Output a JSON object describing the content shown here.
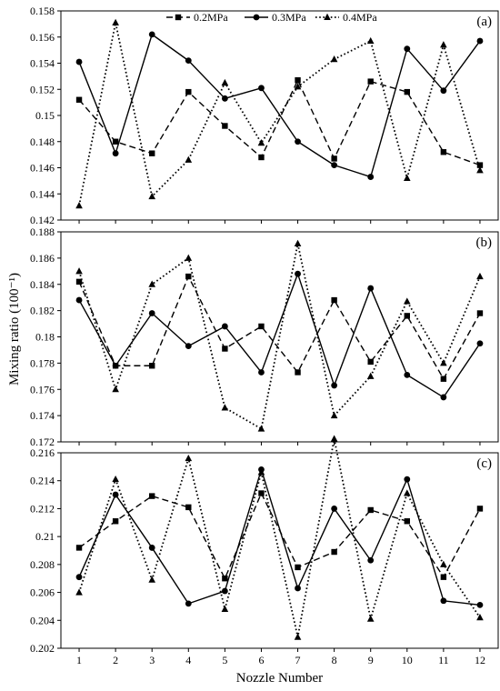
{
  "figure": {
    "ylabel": "Mixing ratio (100⁻¹)",
    "xlabel": "Nozzle Number",
    "legend": [
      "0.2MPa",
      "0.3MPa",
      "0.4MPa"
    ],
    "legend_position": "top-center"
  },
  "chart_data": [
    {
      "type": "line",
      "panel_label": "(a)",
      "x": [
        1,
        2,
        3,
        4,
        5,
        6,
        7,
        8,
        9,
        10,
        11,
        12
      ],
      "ylim": [
        0.142,
        0.158
      ],
      "yticks": [
        0.142,
        0.144,
        0.146,
        0.148,
        0.15,
        0.152,
        0.154,
        0.156,
        0.158
      ],
      "ytick_labels": [
        "0.142",
        "0.144",
        "0.146",
        "0.148",
        "0.15",
        "0.152",
        "0.154",
        "0.156",
        "0.158"
      ],
      "series": [
        {
          "name": "0.2MPa",
          "style": "dashed",
          "marker": "square",
          "values": [
            0.1512,
            0.148,
            0.1471,
            0.1518,
            0.1492,
            0.1468,
            0.1527,
            0.1467,
            0.1526,
            0.1518,
            0.1472,
            0.1462
          ]
        },
        {
          "name": "0.3MPa",
          "style": "solid",
          "marker": "circle",
          "values": [
            0.1541,
            0.1471,
            0.1562,
            0.1542,
            0.1513,
            0.1521,
            0.148,
            0.1462,
            0.1453,
            0.1551,
            0.1519,
            0.1557
          ]
        },
        {
          "name": "0.4MPa",
          "style": "dotted",
          "marker": "triangle",
          "values": [
            0.1431,
            0.1571,
            0.1438,
            0.1466,
            0.1525,
            0.1479,
            0.1522,
            0.1543,
            0.1557,
            0.1452,
            0.1554,
            0.1458
          ]
        }
      ]
    },
    {
      "type": "line",
      "panel_label": "(b)",
      "x": [
        1,
        2,
        3,
        4,
        5,
        6,
        7,
        8,
        9,
        10,
        11,
        12
      ],
      "ylim": [
        0.172,
        0.188
      ],
      "yticks": [
        0.172,
        0.174,
        0.176,
        0.178,
        0.18,
        0.182,
        0.184,
        0.186,
        0.188
      ],
      "ytick_labels": [
        "0.172",
        "0.174",
        "0.176",
        "0.178",
        "0.18",
        "0.182",
        "0.184",
        "0.186",
        "0.188"
      ],
      "series": [
        {
          "name": "0.2MPa",
          "style": "dashed",
          "marker": "square",
          "values": [
            0.1842,
            0.1778,
            0.1778,
            0.1846,
            0.1791,
            0.1808,
            0.1773,
            0.1828,
            0.1781,
            0.1816,
            0.1768,
            0.1818
          ]
        },
        {
          "name": "0.3MPa",
          "style": "solid",
          "marker": "circle",
          "values": [
            0.1828,
            0.1778,
            0.1818,
            0.1793,
            0.1808,
            0.1773,
            0.1848,
            0.1763,
            0.1837,
            0.1771,
            0.1754,
            0.1795
          ]
        },
        {
          "name": "0.4MPa",
          "style": "dotted",
          "marker": "triangle",
          "values": [
            0.185,
            0.176,
            0.184,
            0.186,
            0.1746,
            0.173,
            0.1871,
            0.174,
            0.177,
            0.1827,
            0.178,
            0.1846
          ]
        }
      ]
    },
    {
      "type": "line",
      "panel_label": "(c)",
      "x": [
        1,
        2,
        3,
        4,
        5,
        6,
        7,
        8,
        9,
        10,
        11,
        12
      ],
      "ylim": [
        0.202,
        0.216
      ],
      "yticks": [
        0.202,
        0.204,
        0.206,
        0.208,
        0.21,
        0.212,
        0.214,
        0.216
      ],
      "ytick_labels": [
        "0.202",
        "0.204",
        "0.206",
        "0.208",
        "0.21",
        "0.212",
        "0.214",
        "0.216"
      ],
      "series": [
        {
          "name": "0.2MPa",
          "style": "dashed",
          "marker": "square",
          "values": [
            0.2092,
            0.2111,
            0.2129,
            0.2121,
            0.207,
            0.2131,
            0.2078,
            0.2089,
            0.2119,
            0.2111,
            0.2071,
            0.212
          ]
        },
        {
          "name": "0.3MPa",
          "style": "solid",
          "marker": "circle",
          "values": [
            0.2071,
            0.213,
            0.2092,
            0.2052,
            0.2061,
            0.2148,
            0.2063,
            0.212,
            0.2083,
            0.2141,
            0.2054,
            0.2051
          ]
        },
        {
          "name": "0.4MPa",
          "style": "dotted",
          "marker": "triangle",
          "values": [
            0.206,
            0.2141,
            0.2069,
            0.2156,
            0.2048,
            0.2146,
            0.2028,
            0.217,
            0.2041,
            0.2131,
            0.208,
            0.2042
          ]
        }
      ]
    }
  ]
}
